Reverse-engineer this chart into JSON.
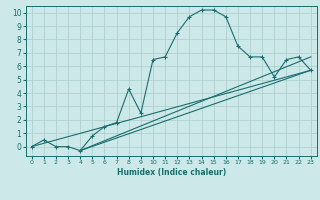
{
  "xlabel": "Humidex (Indice chaleur)",
  "background_color": "#cde8e8",
  "grid_color": "#aacccc",
  "line_color": "#1a6e6e",
  "xlim": [
    -0.5,
    23.5
  ],
  "ylim": [
    -0.7,
    10.5
  ],
  "xticks": [
    0,
    1,
    2,
    3,
    4,
    5,
    6,
    7,
    8,
    9,
    10,
    11,
    12,
    13,
    14,
    15,
    16,
    17,
    18,
    19,
    20,
    21,
    22,
    23
  ],
  "yticks": [
    0,
    1,
    2,
    3,
    4,
    5,
    6,
    7,
    8,
    9,
    10
  ],
  "line1_x": [
    0,
    1,
    2,
    3,
    4,
    5,
    6,
    7,
    8,
    9,
    10,
    11,
    12,
    13,
    14,
    15,
    16,
    17,
    18,
    19,
    20,
    21,
    22,
    23
  ],
  "line1_y": [
    0,
    0.5,
    0,
    0,
    -0.3,
    0.8,
    1.5,
    1.8,
    4.3,
    2.5,
    6.5,
    6.7,
    8.5,
    9.7,
    10.2,
    10.2,
    9.7,
    7.5,
    6.7,
    6.7,
    5.2,
    6.5,
    6.7,
    5.7
  ],
  "line2_x": [
    0,
    23
  ],
  "line2_y": [
    0,
    5.7
  ],
  "line3_x": [
    4,
    23
  ],
  "line3_y": [
    -0.3,
    5.7
  ],
  "line4_x": [
    4,
    23
  ],
  "line4_y": [
    -0.3,
    6.7
  ]
}
